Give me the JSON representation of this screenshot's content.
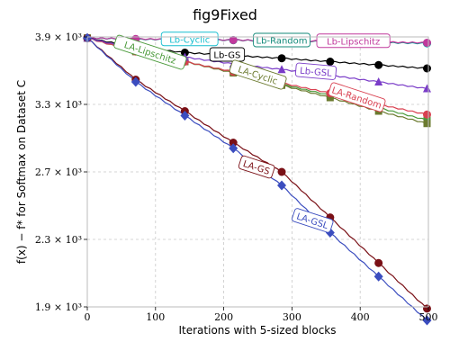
{
  "chart_data": {
    "type": "line",
    "title": "fig9Fixed",
    "xlabel": "Iterations with 5-sized blocks",
    "ylabel": "f(x) − f* for Softmax on Dataset C",
    "xlim": [
      0,
      500
    ],
    "ylim": [
      1900,
      3900
    ],
    "xticks": [
      0,
      100,
      200,
      300,
      400,
      500
    ],
    "yticks": [
      1900,
      2300,
      2700,
      3300,
      3900
    ],
    "ytick_labels": [
      "1.9 × 10³",
      "2.3 × 10³",
      "2.7 × 10³",
      "3.3 × 10³",
      "3.9 × 10³"
    ],
    "grid": true,
    "marker_x": [
      0,
      71,
      143,
      214,
      285,
      356,
      427,
      498
    ],
    "series": [
      {
        "name": "Lb-Cyclic",
        "color": "#17becf",
        "marker": "circle",
        "values": [
          3890,
          3880,
          3875,
          3872,
          3868,
          3860,
          3850,
          3842
        ],
        "label_at": [
          150,
          3878
        ]
      },
      {
        "name": "Lb-Random",
        "color": "#138a7a",
        "marker": "circle",
        "values": [
          3890,
          3880,
          3875,
          3870,
          3866,
          3858,
          3850,
          3845
        ],
        "label_at": [
          285,
          3868
        ]
      },
      {
        "name": "Lb-Lipschitz",
        "color": "#c0399c",
        "marker": "circle",
        "values": [
          3890,
          3882,
          3877,
          3872,
          3868,
          3862,
          3855,
          3848
        ],
        "label_at": [
          390,
          3862
        ]
      },
      {
        "name": "Lb-GS",
        "color": "#000000",
        "marker": "circle",
        "values": [
          3890,
          3810,
          3760,
          3735,
          3710,
          3680,
          3650,
          3620
        ],
        "label_at": [
          205,
          3740
        ]
      },
      {
        "name": "LA-Lipschitz",
        "color": "#4a9a3a",
        "marker": "square",
        "values": [
          3890,
          3770,
          3680,
          3590,
          3480,
          3380,
          3270,
          3160
        ],
        "label_at": [
          92,
          3760
        ]
      },
      {
        "name": "LA-Cyclic",
        "color": "#6b7a2e",
        "marker": "square",
        "values": [
          3890,
          3770,
          3680,
          3580,
          3470,
          3360,
          3240,
          3130
        ],
        "label_at": [
          250,
          3560
        ]
      },
      {
        "name": "LA-Random",
        "color": "#d94050",
        "marker": "circle",
        "values": [
          3890,
          3770,
          3680,
          3590,
          3490,
          3400,
          3300,
          3210
        ],
        "label_at": [
          395,
          3360
        ]
      },
      {
        "name": "Lb-GSL",
        "color": "#7a3cc8",
        "marker": "triangle",
        "values": [
          3890,
          3790,
          3720,
          3660,
          3610,
          3560,
          3500,
          3440
        ],
        "label_at": [
          335,
          3590
        ]
      },
      {
        "name": "LA-GS",
        "color": "#7a1016",
        "marker": "circle",
        "values": [
          3890,
          3520,
          3240,
          2960,
          2700,
          2430,
          2160,
          1890
        ],
        "label_at": [
          248,
          2740
        ]
      },
      {
        "name": "LA-GSL",
        "color": "#3b4dbf",
        "marker": "diamond",
        "values": [
          3890,
          3500,
          3200,
          2910,
          2620,
          2340,
          2080,
          1820
        ],
        "label_at": [
          330,
          2410
        ]
      }
    ]
  }
}
